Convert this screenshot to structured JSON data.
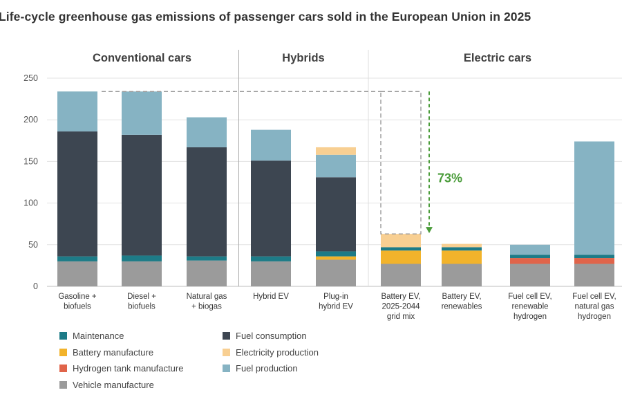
{
  "chart_data": {
    "type": "bar",
    "title": "Life-cycle greenhouse gas emissions of passenger cars sold in the European Union in 2025",
    "xlabel": "",
    "ylabel": "",
    "ylim": [
      0,
      250
    ],
    "yticks": [
      0,
      50,
      100,
      150,
      200,
      250
    ],
    "grid": true,
    "stacked": true,
    "legend_position": "bottom-left",
    "groups": [
      {
        "label": "Conventional cars",
        "categories": [
          0,
          1,
          2
        ]
      },
      {
        "label": "Hybrids",
        "categories": [
          3,
          4
        ]
      },
      {
        "label": "Electric cars",
        "categories": [
          5,
          6,
          7,
          8
        ]
      }
    ],
    "categories": [
      [
        "Gasoline +",
        "biofuels"
      ],
      [
        "Diesel +",
        "biofuels"
      ],
      [
        "Natural gas",
        "+ biogas"
      ],
      [
        "Hybrid EV"
      ],
      [
        "Plug-in",
        "hybrid EV"
      ],
      [
        "Battery EV,",
        "2025-2044",
        "grid mix"
      ],
      [
        "Battery EV,",
        "renewables"
      ],
      [
        "Fuel cell EV,",
        "renewable",
        "hydrogen"
      ],
      [
        "Fuel cell EV,",
        "natural gas",
        "hydrogen"
      ]
    ],
    "series": [
      {
        "name": "Vehicle manufacture",
        "color": "#9b9b9b",
        "values": [
          30,
          30,
          31,
          30,
          32,
          27,
          27,
          27,
          27
        ]
      },
      {
        "name": "Hydrogen tank manufacture",
        "color": "#e0644a",
        "values": [
          0,
          0,
          0,
          0,
          0,
          0,
          0,
          7,
          7
        ]
      },
      {
        "name": "Battery manufacture",
        "color": "#f2b32b",
        "values": [
          0,
          0,
          0,
          0,
          4,
          16,
          16,
          0,
          0
        ]
      },
      {
        "name": "Maintenance",
        "color": "#1d7b87",
        "values": [
          6,
          7,
          5,
          6,
          6,
          4,
          4,
          4,
          4
        ]
      },
      {
        "name": "Fuel consumption",
        "color": "#3d4651",
        "values": [
          150,
          145,
          131,
          115,
          89,
          0,
          0,
          0,
          0
        ]
      },
      {
        "name": "Fuel production",
        "color": "#86b3c3",
        "values": [
          48,
          52,
          36,
          37,
          27,
          0,
          0,
          12,
          136
        ]
      },
      {
        "name": "Electricity production",
        "color": "#f8cf92",
        "values": [
          0,
          0,
          0,
          0,
          9,
          16,
          4,
          0,
          0
        ]
      }
    ],
    "annotation": {
      "text": "73%",
      "from_value": 234,
      "to_value": 63,
      "color": "#4a9c3a"
    }
  },
  "legend": {
    "items": [
      {
        "label": "Maintenance",
        "color": "#1d7b87"
      },
      {
        "label": "Battery manufacture",
        "color": "#f2b32b"
      },
      {
        "label": "Hydrogen tank manufacture",
        "color": "#e0644a"
      },
      {
        "label": "Vehicle manufacture",
        "color": "#9b9b9b"
      },
      {
        "label": "Fuel consumption",
        "color": "#3d4651"
      },
      {
        "label": "Electricity production",
        "color": "#f8cf92"
      },
      {
        "label": "Fuel production",
        "color": "#86b3c3"
      }
    ]
  }
}
